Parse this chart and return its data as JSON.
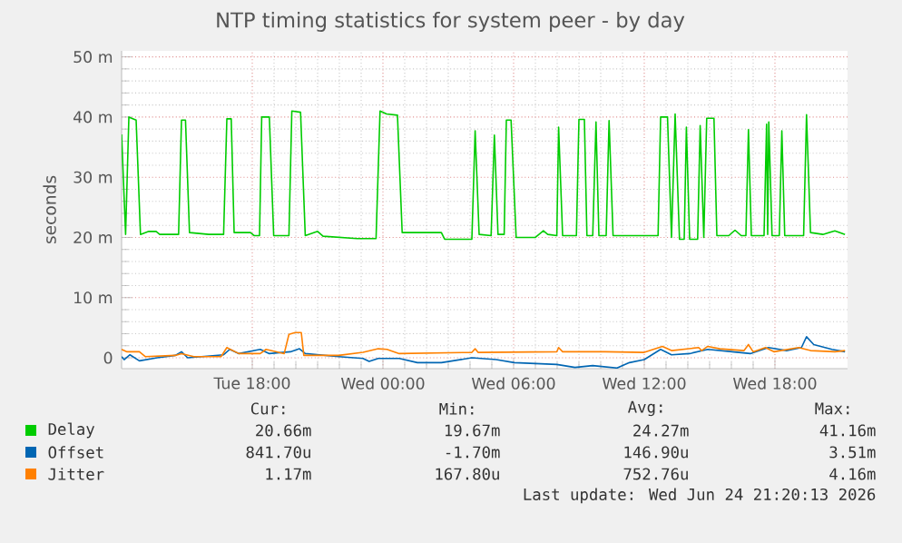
{
  "chart_data": {
    "type": "line",
    "title": "NTP timing statistics for system peer - by day",
    "ylabel": "seconds",
    "xlim": [
      "2026-06-23T12:00",
      "2026-06-24T21:20"
    ],
    "ylim": [
      -1.8,
      51
    ],
    "xticks": [
      {
        "value": "2026-06-23T18:00",
        "label": "Tue 18:00"
      },
      {
        "value": "2026-06-24T00:00",
        "label": "Wed 00:00"
      },
      {
        "value": "2026-06-24T06:00",
        "label": "Wed 06:00"
      },
      {
        "value": "2026-06-24T12:00",
        "label": "Wed 12:00"
      },
      {
        "value": "2026-06-24T18:00",
        "label": "Wed 18:00"
      }
    ],
    "yticks": [
      0,
      {
        "value": 10,
        "label": "10 m"
      },
      {
        "value": 20,
        "label": "20 m"
      },
      {
        "value": 30,
        "label": "30 m"
      },
      {
        "value": 40,
        "label": "40 m"
      },
      {
        "value": 50,
        "label": "50 m"
      }
    ],
    "grid": true,
    "legend": "bottom",
    "series": [
      {
        "name": "Delay",
        "color": "#00cc00",
        "x": [
          "2026-06-23T12:00",
          "2026-06-23T12:11",
          "2026-06-23T12:20",
          "2026-06-23T12:40",
          "2026-06-23T12:52",
          "2026-06-23T13:15",
          "2026-06-23T13:35",
          "2026-06-23T13:45",
          "2026-06-23T14:37",
          "2026-06-23T14:45",
          "2026-06-23T14:56",
          "2026-06-23T15:07",
          "2026-06-23T16:00",
          "2026-06-23T16:41",
          "2026-06-23T16:50",
          "2026-06-23T17:02",
          "2026-06-23T17:10",
          "2026-06-23T17:55",
          "2026-06-23T18:05",
          "2026-06-23T18:20",
          "2026-06-23T18:26",
          "2026-06-23T18:47",
          "2026-06-23T18:59",
          "2026-06-23T19:41",
          "2026-06-23T19:49",
          "2026-06-23T20:13",
          "2026-06-23T20:26",
          "2026-06-23T21:00",
          "2026-06-23T21:15",
          "2026-06-23T22:49",
          "2026-06-23T23:41",
          "2026-06-23T23:52",
          "2026-06-24T00:10",
          "2026-06-24T00:40",
          "2026-06-24T00:53",
          "2026-06-24T02:41",
          "2026-06-24T02:50",
          "2026-06-24T04:05",
          "2026-06-24T04:14",
          "2026-06-24T04:25",
          "2026-06-24T04:58",
          "2026-06-24T05:07",
          "2026-06-24T05:17",
          "2026-06-24T05:34",
          "2026-06-24T05:40",
          "2026-06-24T05:53",
          "2026-06-24T06:07",
          "2026-06-24T07:00",
          "2026-06-24T07:22",
          "2026-06-24T07:34",
          "2026-06-24T07:59",
          "2026-06-24T08:04",
          "2026-06-24T08:15",
          "2026-06-24T08:53",
          "2026-06-24T09:00",
          "2026-06-24T09:15",
          "2026-06-24T09:22",
          "2026-06-24T09:38",
          "2026-06-24T09:47",
          "2026-06-24T09:55",
          "2026-06-24T10:15",
          "2026-06-24T10:23",
          "2026-06-24T10:34",
          "2026-06-24T12:00",
          "2026-06-24T12:38",
          "2026-06-24T12:45",
          "2026-06-24T13:04",
          "2026-06-24T13:15",
          "2026-06-24T13:25",
          "2026-06-24T13:37",
          "2026-06-24T13:50",
          "2026-06-24T13:56",
          "2026-06-24T14:05",
          "2026-06-24T14:27",
          "2026-06-24T14:34",
          "2026-06-24T14:44",
          "2026-06-24T14:52",
          "2026-06-24T15:12",
          "2026-06-24T15:20",
          "2026-06-24T15:53",
          "2026-06-24T16:10",
          "2026-06-24T16:27",
          "2026-06-24T16:40",
          "2026-06-24T16:47",
          "2026-06-24T16:55",
          "2026-06-24T17:30",
          "2026-06-24T17:37",
          "2026-06-24T17:40",
          "2026-06-24T17:43",
          "2026-06-24T17:52",
          "2026-06-24T18:12",
          "2026-06-24T18:19",
          "2026-06-24T18:27",
          "2026-06-24T19:19",
          "2026-06-24T19:27",
          "2026-06-24T19:38",
          "2026-06-24T20:12",
          "2026-06-24T20:45",
          "2026-06-24T21:13"
        ],
        "values": [
          37.1,
          20.5,
          40,
          39.5,
          20.5,
          21,
          21,
          20.5,
          20.5,
          39.5,
          39.5,
          20.8,
          20.5,
          20.5,
          39.7,
          39.7,
          20.8,
          20.8,
          20.3,
          20.3,
          40,
          40,
          20.3,
          20.3,
          41,
          40.8,
          20.3,
          21,
          20.2,
          19.8,
          19.8,
          41,
          40.5,
          40.3,
          20.8,
          20.8,
          19.7,
          19.7,
          37.7,
          20.5,
          20.3,
          37,
          20.5,
          20.5,
          39.5,
          39.5,
          20,
          20,
          21.1,
          20.5,
          20.3,
          38.3,
          20.3,
          20.3,
          39.6,
          39.6,
          20.3,
          20.3,
          39.2,
          20.3,
          20.3,
          39.4,
          20.3,
          20.3,
          20.3,
          40,
          40,
          20,
          40.5,
          19.7,
          19.7,
          38.3,
          19.7,
          19.7,
          38.6,
          20,
          39.8,
          39.8,
          20.3,
          20.3,
          21.2,
          20.3,
          20.3,
          37.9,
          20.3,
          20.3,
          38.8,
          20.5,
          39.2,
          20.3,
          20.3,
          37.7,
          20.3,
          20.3,
          40.4,
          20.8,
          20.5,
          21.1,
          20.5
        ]
      },
      {
        "name": "Offset",
        "color": "#0066b3",
        "x": [
          "2026-06-23T12:00",
          "2026-06-23T12:07",
          "2026-06-23T12:23",
          "2026-06-23T12:49",
          "2026-06-23T13:38",
          "2026-06-23T14:28",
          "2026-06-23T14:45",
          "2026-06-23T15:02",
          "2026-06-23T16:41",
          "2026-06-23T16:58",
          "2026-06-23T17:23",
          "2026-06-23T18:22",
          "2026-06-23T18:47",
          "2026-06-23T19:45",
          "2026-06-23T20:10",
          "2026-06-23T20:26",
          "2026-06-23T21:58",
          "2026-06-23T23:05",
          "2026-06-23T23:22",
          "2026-06-23T23:47",
          "2026-06-24T00:45",
          "2026-06-24T01:35",
          "2026-06-24T02:41",
          "2026-06-24T04:05",
          "2026-06-24T05:12",
          "2026-06-24T06:02",
          "2026-06-24T07:59",
          "2026-06-24T08:49",
          "2026-06-24T09:38",
          "2026-06-24T10:45",
          "2026-06-24T11:19",
          "2026-06-24T12:00",
          "2026-06-24T12:45",
          "2026-06-24T13:15",
          "2026-06-24T14:05",
          "2026-06-24T14:55",
          "2026-06-24T16:02",
          "2026-06-24T16:52",
          "2026-06-24T17:42",
          "2026-06-24T18:32",
          "2026-06-24T19:13",
          "2026-06-24T19:27",
          "2026-06-24T19:47",
          "2026-06-24T20:37",
          "2026-06-24T21:13"
        ],
        "values": [
          0.2,
          -0.3,
          0.5,
          -0.5,
          0,
          0.4,
          1.0,
          0,
          0.5,
          1.4,
          0.7,
          1.4,
          0.7,
          1.0,
          1.5,
          0.7,
          0.2,
          -0.1,
          -0.6,
          -0.1,
          -0.1,
          -0.8,
          -0.8,
          0,
          -0.3,
          -0.8,
          -1.1,
          -1.6,
          -1.3,
          -1.7,
          -0.8,
          -0.3,
          1.4,
          0.5,
          0.7,
          1.4,
          1.0,
          0.7,
          1.7,
          1.2,
          1.7,
          3.5,
          2.2,
          1.4,
          1.0
        ]
      },
      {
        "name": "Jitter",
        "color": "#ff8000",
        "x": [
          "2026-06-23T12:00",
          "2026-06-23T12:15",
          "2026-06-23T12:49",
          "2026-06-23T13:05",
          "2026-06-23T14:28",
          "2026-06-23T14:45",
          "2026-06-23T15:19",
          "2026-06-23T16:34",
          "2026-06-23T16:50",
          "2026-06-23T17:23",
          "2026-06-23T18:22",
          "2026-06-23T18:38",
          "2026-06-23T19:28",
          "2026-06-23T19:41",
          "2026-06-23T19:58",
          "2026-06-23T20:15",
          "2026-06-23T20:22",
          "2026-06-23T21:58",
          "2026-06-23T23:05",
          "2026-06-23T23:47",
          "2026-06-24T00:11",
          "2026-06-24T00:45",
          "2026-06-24T04:05",
          "2026-06-24T04:14",
          "2026-06-24T04:22",
          "2026-06-24T07:59",
          "2026-06-24T08:04",
          "2026-06-24T08:15",
          "2026-06-24T10:12",
          "2026-06-24T12:00",
          "2026-06-24T12:50",
          "2026-06-24T13:15",
          "2026-06-24T14:30",
          "2026-06-24T14:38",
          "2026-06-24T14:55",
          "2026-06-24T15:28",
          "2026-06-24T16:35",
          "2026-06-24T16:47",
          "2026-06-24T17:00",
          "2026-06-24T17:34",
          "2026-06-24T17:58",
          "2026-06-24T19:05",
          "2026-06-24T19:38",
          "2026-06-24T20:45",
          "2026-06-24T21:13"
        ],
        "values": [
          1.4,
          1.0,
          1.0,
          0.2,
          0.4,
          0.7,
          0.2,
          0.2,
          1.7,
          0.7,
          0.7,
          1.4,
          0.7,
          3.9,
          4.2,
          4.2,
          0.4,
          0.4,
          0.9,
          1.5,
          1.4,
          0.7,
          0.9,
          1.5,
          0.9,
          1.0,
          1.7,
          1.0,
          1.0,
          0.9,
          1.9,
          1.2,
          1.7,
          1.2,
          1.9,
          1.5,
          1.2,
          2.2,
          1.0,
          1.7,
          1.0,
          1.7,
          1.2,
          1.0,
          1.2
        ]
      }
    ],
    "annotations": [
      "Cur:",
      "Min:",
      "Avg:",
      "Max:",
      "20.66m",
      "19.67m",
      "24.27m",
      "41.16m",
      "841.70u",
      "-1.70m",
      "146.90u",
      "3.51m",
      "1.17m",
      "167.80u",
      "752.76u",
      "4.16m",
      "Last update: Wed Jun 24 21:20:13 2026"
    ]
  }
}
